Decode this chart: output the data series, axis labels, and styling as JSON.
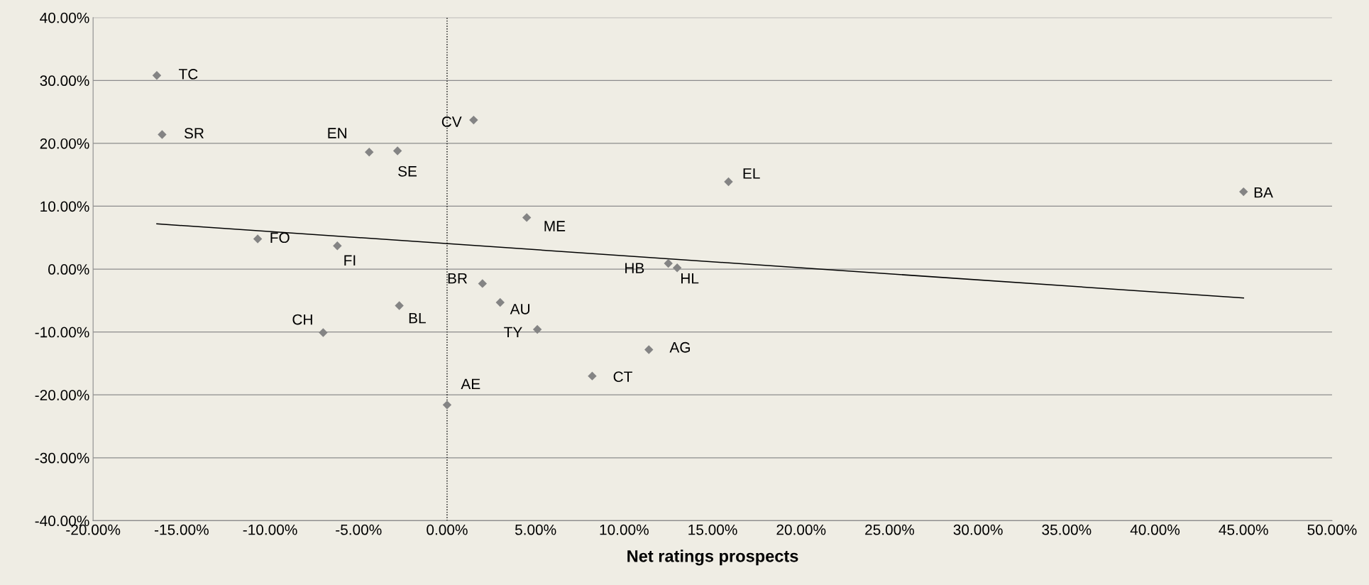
{
  "chart_data": {
    "type": "scatter",
    "xlabel": "Net ratings prospects",
    "x": [
      -16.4,
      -16.1,
      -4.4,
      -2.8,
      1.5,
      15.9,
      45.0,
      4.5,
      -10.7,
      -6.2,
      12.5,
      13.0,
      2.0,
      3.0,
      -2.7,
      -7.0,
      5.1,
      11.4,
      8.2,
      0.0
    ],
    "series": [
      {
        "color": "#848484",
        "marker": "diamond",
        "values": [
          30.8,
          21.4,
          18.6,
          18.8,
          23.7,
          13.9,
          12.3,
          8.2,
          4.8,
          3.7,
          0.9,
          0.2,
          -2.3,
          -5.3,
          -5.8,
          -10.1,
          -9.6,
          -12.8,
          -17.0,
          -21.6
        ]
      },
      {
        "type": "line",
        "color": "#000000",
        "x": [
          -16.4,
          45.0
        ],
        "values": [
          7.2,
          -4.6
        ]
      }
    ],
    "annotations": [
      {
        "text": "TC",
        "x": -16.4,
        "y": 30.8
      },
      {
        "text": "SR",
        "x": -16.1,
        "y": 21.4
      },
      {
        "text": "EN",
        "x": -4.4,
        "y": 18.6
      },
      {
        "text": "SE",
        "x": -2.8,
        "y": 18.8
      },
      {
        "text": "CV",
        "x": 1.5,
        "y": 23.7
      },
      {
        "text": "EL",
        "x": 15.9,
        "y": 13.9
      },
      {
        "text": "BA",
        "x": 45.0,
        "y": 12.3
      },
      {
        "text": "ME",
        "x": 4.5,
        "y": 8.2
      },
      {
        "text": "FO",
        "x": -10.7,
        "y": 4.8
      },
      {
        "text": "FI",
        "x": -6.2,
        "y": 3.7
      },
      {
        "text": "HB",
        "x": 12.5,
        "y": 0.9
      },
      {
        "text": "HL",
        "x": 13.0,
        "y": 0.2
      },
      {
        "text": "BR",
        "x": 2.0,
        "y": -2.3
      },
      {
        "text": "AU",
        "x": 3.0,
        "y": -5.3
      },
      {
        "text": "BL",
        "x": -2.7,
        "y": -5.8
      },
      {
        "text": "CH",
        "x": -7.0,
        "y": -10.1
      },
      {
        "text": "TY",
        "x": 5.1,
        "y": -9.6
      },
      {
        "text": "AG",
        "x": 11.4,
        "y": -12.8
      },
      {
        "text": "CT",
        "x": 8.2,
        "y": -17.0
      },
      {
        "text": "AE",
        "x": 0.0,
        "y": -21.6
      }
    ],
    "ref_lines": [
      {
        "axis": "x",
        "value": 0,
        "color": "#000000",
        "line_style": "dotted"
      }
    ],
    "xlim": [
      -20,
      50
    ],
    "ylim": [
      -40,
      40
    ],
    "xticks": [
      {
        "value": -20,
        "label": "-20.00%"
      },
      {
        "value": -15,
        "label": "-15.00%"
      },
      {
        "value": -10,
        "label": "-10.00%"
      },
      {
        "value": -5,
        "label": "-5.00%"
      },
      {
        "value": 0,
        "label": "0.00%"
      },
      {
        "value": 5,
        "label": "5.00%"
      },
      {
        "value": 10,
        "label": "10.00%"
      },
      {
        "value": 15,
        "label": "15.00%"
      },
      {
        "value": 20,
        "label": "20.00%"
      },
      {
        "value": 25,
        "label": "25.00%"
      },
      {
        "value": 30,
        "label": "30.00%"
      },
      {
        "value": 35,
        "label": "35.00%"
      },
      {
        "value": 40,
        "label": "40.00%"
      },
      {
        "value": 45,
        "label": "45.00%"
      },
      {
        "value": 50,
        "label": "50.00%"
      }
    ],
    "yticks": [
      {
        "value": -40,
        "label": "-40.00%"
      },
      {
        "value": -30,
        "label": "-30.00%"
      },
      {
        "value": -20,
        "label": "-20.00%"
      },
      {
        "value": -10,
        "label": "-10.00%"
      },
      {
        "value": 0,
        "label": "0.00%"
      },
      {
        "value": 10,
        "label": "10.00%"
      },
      {
        "value": 20,
        "label": "20.00%"
      },
      {
        "value": 30,
        "label": "30.00%"
      },
      {
        "value": 40,
        "label": "40.00%"
      }
    ],
    "grid": "y"
  }
}
